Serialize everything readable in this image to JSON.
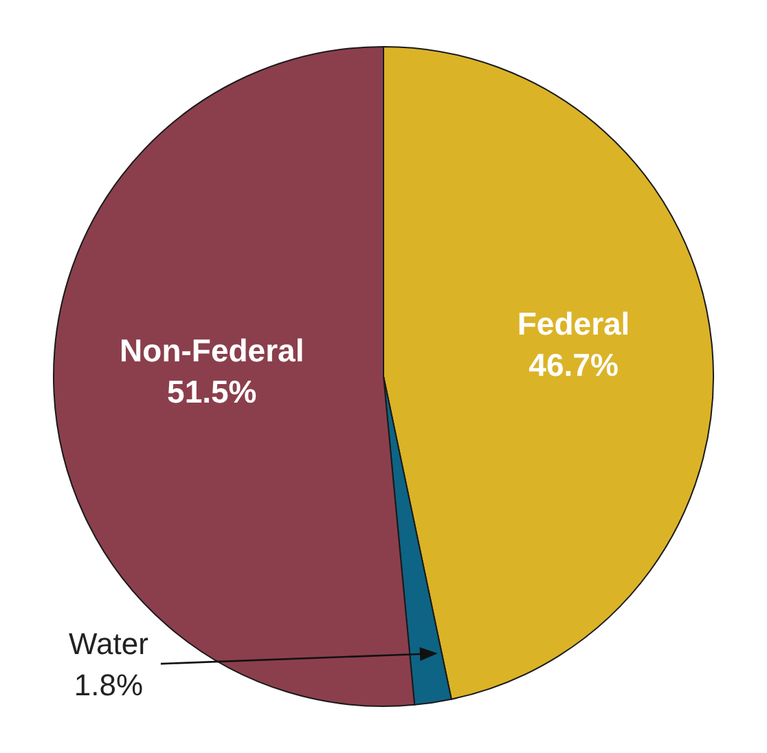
{
  "chart_data": {
    "type": "pie",
    "categories": [
      "Federal",
      "Water",
      "Non-Federal"
    ],
    "values": [
      46.7,
      1.8,
      51.5
    ],
    "colors": [
      "#dbb327",
      "#0e6485",
      "#8b3f4c"
    ],
    "value_labels": [
      "46.7%",
      "1.8%",
      "51.5%"
    ]
  }
}
